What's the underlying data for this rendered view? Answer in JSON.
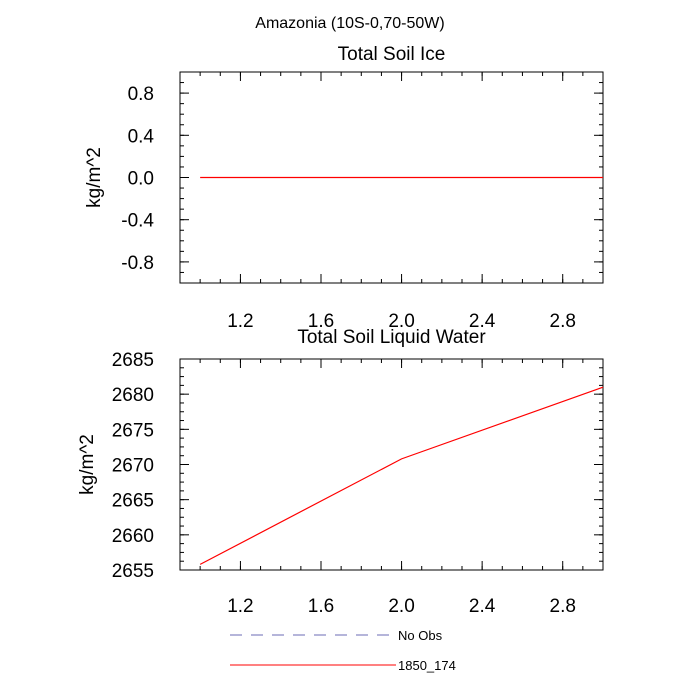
{
  "figure": {
    "title": "Amazonia (10S-0,70-50W)"
  },
  "chart_data": [
    {
      "type": "line",
      "title": "Total Soil Ice",
      "xlabel": "",
      "ylabel": "kg/m^2",
      "xlim": [
        0.9,
        3.0
      ],
      "ylim": [
        -1.0,
        1.0
      ],
      "x_ticks": [
        1.2,
        1.6,
        2.0,
        2.4,
        2.8
      ],
      "x_tick_labels": [
        "1.2",
        "1.6",
        "2.0",
        "2.4",
        "2.8"
      ],
      "y_ticks": [
        -0.8,
        -0.4,
        0.0,
        0.4,
        0.8
      ],
      "y_tick_labels": [
        "-0.8",
        "-0.4",
        "0.0",
        "0.4",
        "0.8"
      ],
      "series": [
        {
          "name": "1850_174",
          "color": "#ff0000",
          "x": [
            1.0,
            2.0,
            3.0
          ],
          "values": [
            0.0,
            0.0,
            0.0
          ]
        }
      ]
    },
    {
      "type": "line",
      "title": "Total Soil Liquid Water",
      "xlabel": "",
      "ylabel": "kg/m^2",
      "xlim": [
        0.9,
        3.0
      ],
      "ylim": [
        2655,
        2685
      ],
      "x_ticks": [
        1.2,
        1.6,
        2.0,
        2.4,
        2.8
      ],
      "x_tick_labels": [
        "1.2",
        "1.6",
        "2.0",
        "2.4",
        "2.8"
      ],
      "y_ticks": [
        2655,
        2660,
        2665,
        2670,
        2675,
        2680,
        2685
      ],
      "y_tick_labels": [
        "2655",
        "2660",
        "2665",
        "2670",
        "2675",
        "2680",
        "2685"
      ],
      "series": [
        {
          "name": "1850_174",
          "color": "#ff0000",
          "x": [
            1.0,
            2.0,
            3.0
          ],
          "values": [
            2655.8,
            2670.8,
            2681.0
          ]
        }
      ]
    }
  ],
  "legend": {
    "items": [
      {
        "label": "No Obs",
        "color": "#6b6bb5",
        "style": "dashed"
      },
      {
        "label": "1850_174",
        "color": "#ff0000",
        "style": "solid"
      }
    ]
  }
}
